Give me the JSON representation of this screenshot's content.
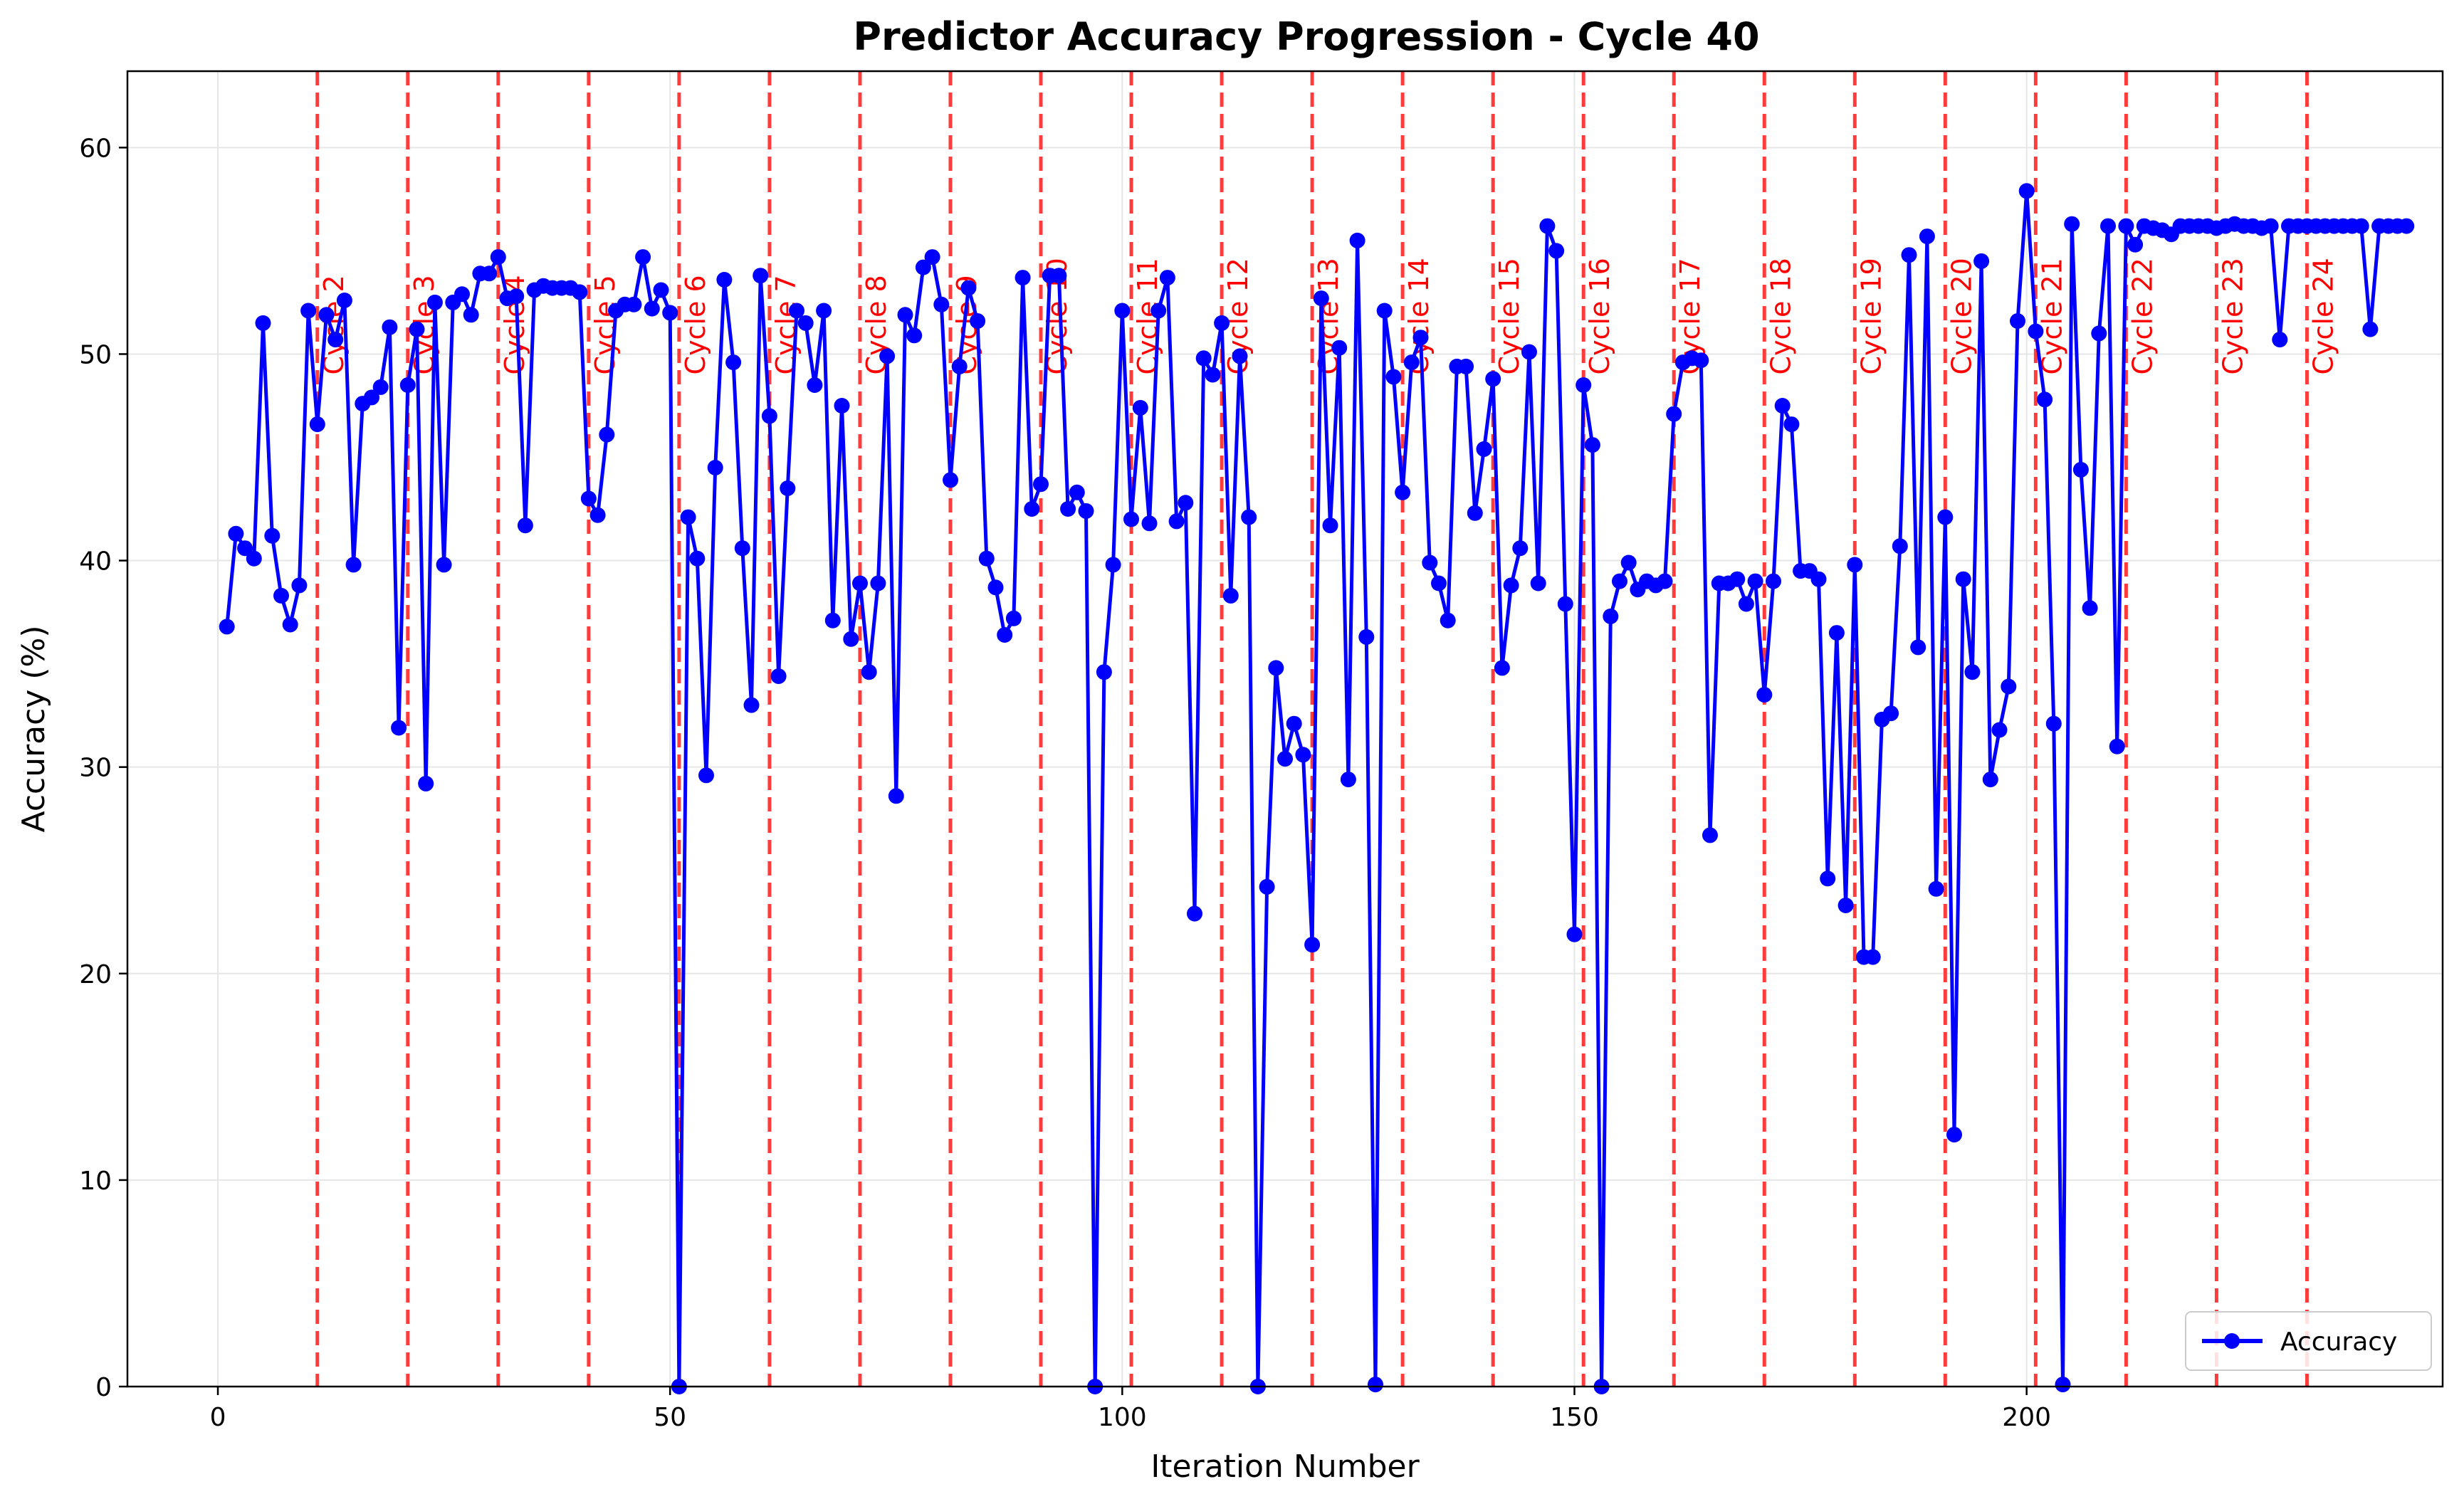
{
  "chart_data": {
    "type": "line",
    "title": "Predictor Accuracy Progression - Cycle 40",
    "xlabel": "Iteration Number",
    "ylabel": "Accuracy (%)",
    "xlim": [
      -10,
      246
    ],
    "ylim": [
      0,
      63.7
    ],
    "x_ticks": [
      0,
      50,
      100,
      150,
      200
    ],
    "y_ticks": [
      0,
      10,
      20,
      30,
      40,
      50,
      60
    ],
    "grid": true,
    "legend_position": "lower right",
    "colors": {
      "series": "#0000ff",
      "cycle_lines": "#ff3b3b",
      "cycle_text": "#ff0000"
    },
    "series": [
      {
        "name": "Accuracy",
        "marker": "circle",
        "x_start": 1,
        "values": [
          36.8,
          41.3,
          40.6,
          40.1,
          51.5,
          41.2,
          38.3,
          36.9,
          38.8,
          52.1,
          46.6,
          51.9,
          50.7,
          52.6,
          39.8,
          47.6,
          47.9,
          48.4,
          51.3,
          31.9,
          48.5,
          51.2,
          29.2,
          52.5,
          39.8,
          52.5,
          52.9,
          51.9,
          53.9,
          53.9,
          54.7,
          52.7,
          52.8,
          41.7,
          53.1,
          53.3,
          53.2,
          53.2,
          53.2,
          53.0,
          43.0,
          42.2,
          46.1,
          52.1,
          52.4,
          52.4,
          54.7,
          52.2,
          53.1,
          52.0,
          0.0,
          42.1,
          40.1,
          29.6,
          44.5,
          53.6,
          49.6,
          40.6,
          33.0,
          53.8,
          47.0,
          34.4,
          43.5,
          52.1,
          51.5,
          48.5,
          52.1,
          37.1,
          47.5,
          36.2,
          38.9,
          34.6,
          38.9,
          49.9,
          28.6,
          51.9,
          50.9,
          54.2,
          54.7,
          52.4,
          43.9,
          49.4,
          53.2,
          51.6,
          40.1,
          38.7,
          36.4,
          37.2,
          53.7,
          42.5,
          43.7,
          53.8,
          53.8,
          42.5,
          43.3,
          42.4,
          0.0,
          34.6,
          39.8,
          52.1,
          42.0,
          47.4,
          41.8,
          52.1,
          53.7,
          41.9,
          42.8,
          22.9,
          49.8,
          49.0,
          51.5,
          38.3,
          49.9,
          42.1,
          0.0,
          24.2,
          34.8,
          30.4,
          32.1,
          30.6,
          21.4,
          52.7,
          41.7,
          50.3,
          29.4,
          55.5,
          36.3,
          0.1,
          52.1,
          48.9,
          43.3,
          49.6,
          50.8,
          39.9,
          38.9,
          37.1,
          49.4,
          49.4,
          42.3,
          45.4,
          48.8,
          34.8,
          38.8,
          40.6,
          50.1,
          38.9,
          56.2,
          55.0,
          37.9,
          21.9,
          48.5,
          45.6,
          0.0,
          37.3,
          39.0,
          39.9,
          38.6,
          39.0,
          38.8,
          39.0,
          47.1,
          49.6,
          49.8,
          49.7,
          26.7,
          38.9,
          38.9,
          39.1,
          37.9,
          39.0,
          33.5,
          39.0,
          47.5,
          46.6,
          39.5,
          39.5,
          39.1,
          24.6,
          36.5,
          23.3,
          39.8,
          20.8,
          20.8,
          32.3,
          32.6,
          40.7,
          54.8,
          35.8,
          55.7,
          24.1,
          42.1,
          12.2,
          39.1,
          34.6,
          54.5,
          29.4,
          31.8,
          33.9,
          51.6,
          57.9,
          51.1,
          47.8,
          32.1,
          0.1,
          56.3,
          44.4,
          37.7,
          51.0,
          56.2,
          31.0,
          56.2,
          55.3,
          56.2,
          56.1,
          56.0,
          55.8,
          56.2,
          56.2,
          56.2,
          56.2,
          56.1,
          56.2,
          56.3,
          56.2,
          56.2,
          56.1,
          56.2,
          50.7,
          56.2,
          56.2,
          56.2,
          56.2,
          56.2,
          56.2,
          56.2,
          56.2,
          56.2,
          51.2,
          56.2,
          56.2,
          56.2,
          56.2
        ]
      }
    ],
    "cycle_markers": [
      {
        "x": 11,
        "label": "Cycle 2"
      },
      {
        "x": 21,
        "label": "Cycle 3"
      },
      {
        "x": 31,
        "label": "Cycle 4"
      },
      {
        "x": 41,
        "label": "Cycle 5"
      },
      {
        "x": 51,
        "label": "Cycle 6"
      },
      {
        "x": 61,
        "label": "Cycle 7"
      },
      {
        "x": 71,
        "label": "Cycle 8"
      },
      {
        "x": 81,
        "label": "Cycle 9"
      },
      {
        "x": 91,
        "label": "Cycle 10"
      },
      {
        "x": 101,
        "label": "Cycle 11"
      },
      {
        "x": 111,
        "label": "Cycle 12"
      },
      {
        "x": 121,
        "label": "Cycle 13"
      },
      {
        "x": 131,
        "label": "Cycle 14"
      },
      {
        "x": 141,
        "label": "Cycle 15"
      },
      {
        "x": 151,
        "label": "Cycle 16"
      },
      {
        "x": 161,
        "label": "Cycle 17"
      },
      {
        "x": 171,
        "label": "Cycle 18"
      },
      {
        "x": 181,
        "label": "Cycle 19"
      },
      {
        "x": 191,
        "label": "Cycle 20"
      },
      {
        "x": 201,
        "label": "Cycle 21"
      },
      {
        "x": 211,
        "label": "Cycle 22"
      },
      {
        "x": 221,
        "label": "Cycle 23"
      },
      {
        "x": 231,
        "label": "Cycle 24"
      }
    ]
  }
}
